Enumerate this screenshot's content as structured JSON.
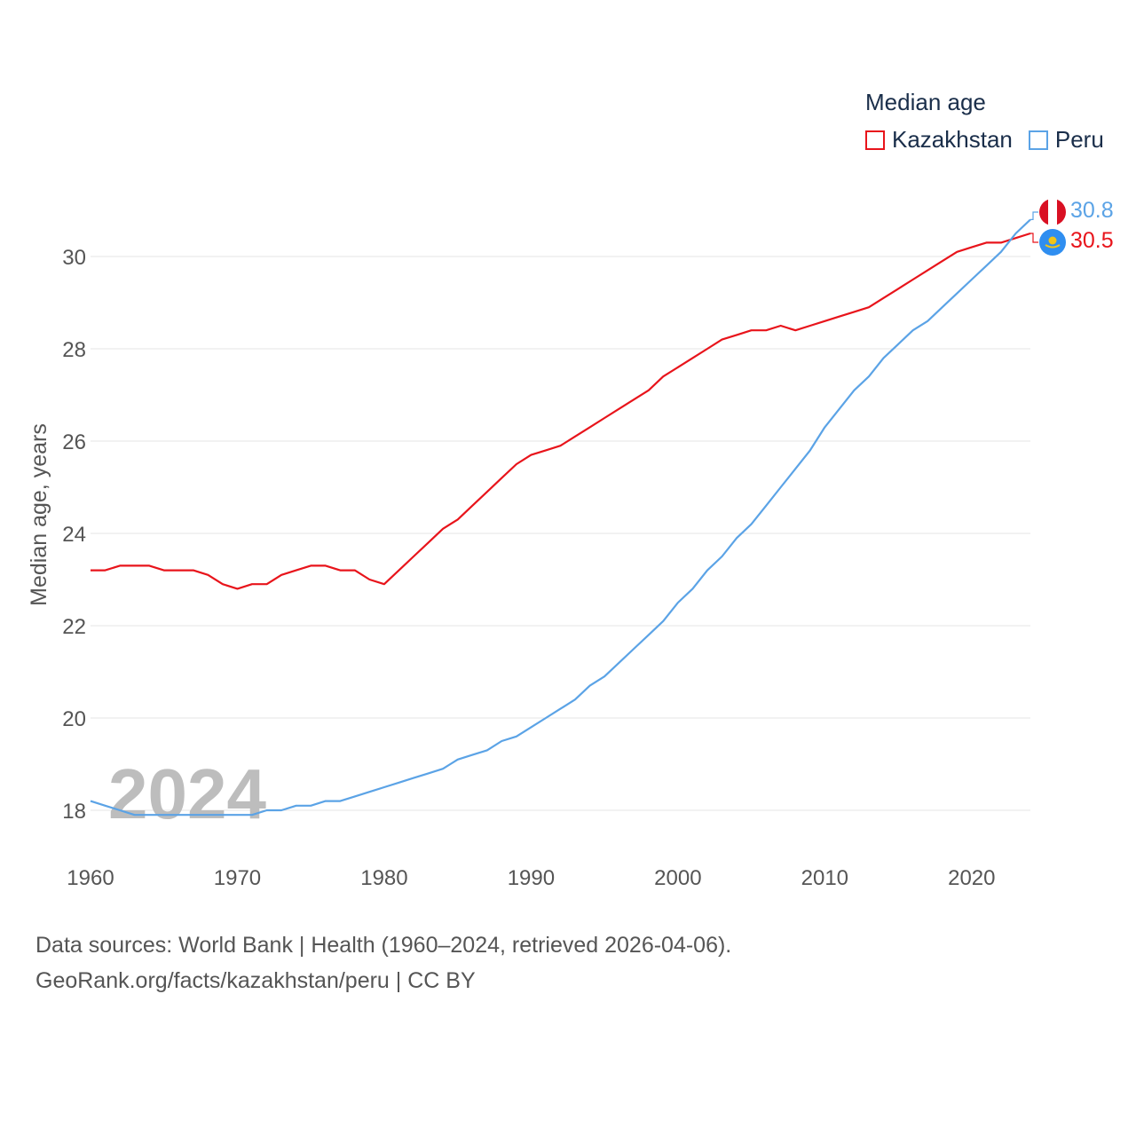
{
  "legend": {
    "title": "Median age"
  },
  "sources": {
    "line1": "Data sources: World Bank | Health (1960–2024, retrieved 2026-04-06).",
    "line2": "GeoRank.org/facts/kazakhstan/peru | CC BY"
  },
  "chart_data": {
    "type": "line",
    "title": "Median age",
    "xlabel": "",
    "ylabel": "Median age, years",
    "xlim": [
      1960,
      2024
    ],
    "ylim": [
      17,
      31.5
    ],
    "xticks": [
      1960,
      1970,
      1980,
      1990,
      2000,
      2010,
      2020
    ],
    "yticks": [
      18,
      20,
      22,
      24,
      26,
      28,
      30
    ],
    "watermark_year": "2024",
    "series": [
      {
        "name": "Kazakhstan",
        "color": "#e8141b",
        "end_label": "30.5",
        "flag": "kazakhstan-flag",
        "x": [
          1960,
          1961,
          1962,
          1963,
          1964,
          1965,
          1966,
          1967,
          1968,
          1969,
          1970,
          1971,
          1972,
          1973,
          1974,
          1975,
          1976,
          1977,
          1978,
          1979,
          1980,
          1981,
          1982,
          1983,
          1984,
          1985,
          1986,
          1987,
          1988,
          1989,
          1990,
          1991,
          1992,
          1993,
          1994,
          1995,
          1996,
          1997,
          1998,
          1999,
          2000,
          2001,
          2002,
          2003,
          2004,
          2005,
          2006,
          2007,
          2008,
          2009,
          2010,
          2011,
          2012,
          2013,
          2014,
          2015,
          2016,
          2017,
          2018,
          2019,
          2020,
          2021,
          2022,
          2023,
          2024
        ],
        "values": [
          23.2,
          23.2,
          23.3,
          23.3,
          23.3,
          23.2,
          23.2,
          23.2,
          23.1,
          22.9,
          22.8,
          22.9,
          22.9,
          23.1,
          23.2,
          23.3,
          23.3,
          23.2,
          23.2,
          23.0,
          22.9,
          23.2,
          23.5,
          23.8,
          24.1,
          24.3,
          24.6,
          24.9,
          25.2,
          25.5,
          25.7,
          25.8,
          25.9,
          26.1,
          26.3,
          26.5,
          26.7,
          26.9,
          27.1,
          27.4,
          27.6,
          27.8,
          28.0,
          28.2,
          28.3,
          28.4,
          28.4,
          28.5,
          28.4,
          28.5,
          28.6,
          28.7,
          28.8,
          28.9,
          29.1,
          29.3,
          29.5,
          29.7,
          29.9,
          30.1,
          30.2,
          30.3,
          30.3,
          30.4,
          30.5
        ]
      },
      {
        "name": "Peru",
        "color": "#5ba3e6",
        "end_label": "30.8",
        "flag": "peru-flag",
        "x": [
          1960,
          1961,
          1962,
          1963,
          1964,
          1965,
          1966,
          1967,
          1968,
          1969,
          1970,
          1971,
          1972,
          1973,
          1974,
          1975,
          1976,
          1977,
          1978,
          1979,
          1980,
          1981,
          1982,
          1983,
          1984,
          1985,
          1986,
          1987,
          1988,
          1989,
          1990,
          1991,
          1992,
          1993,
          1994,
          1995,
          1996,
          1997,
          1998,
          1999,
          2000,
          2001,
          2002,
          2003,
          2004,
          2005,
          2006,
          2007,
          2008,
          2009,
          2010,
          2011,
          2012,
          2013,
          2014,
          2015,
          2016,
          2017,
          2018,
          2019,
          2020,
          2021,
          2022,
          2023,
          2024
        ],
        "values": [
          18.2,
          18.1,
          18.0,
          17.9,
          17.9,
          17.9,
          17.9,
          17.9,
          17.9,
          17.9,
          17.9,
          17.9,
          18.0,
          18.0,
          18.1,
          18.1,
          18.2,
          18.2,
          18.3,
          18.4,
          18.5,
          18.6,
          18.7,
          18.8,
          18.9,
          19.1,
          19.2,
          19.3,
          19.5,
          19.6,
          19.8,
          20.0,
          20.2,
          20.4,
          20.7,
          20.9,
          21.2,
          21.5,
          21.8,
          22.1,
          22.5,
          22.8,
          23.2,
          23.5,
          23.9,
          24.2,
          24.6,
          25.0,
          25.4,
          25.8,
          26.3,
          26.7,
          27.1,
          27.4,
          27.8,
          28.1,
          28.4,
          28.6,
          28.9,
          29.2,
          29.5,
          29.8,
          30.1,
          30.5,
          30.8
        ]
      }
    ]
  }
}
